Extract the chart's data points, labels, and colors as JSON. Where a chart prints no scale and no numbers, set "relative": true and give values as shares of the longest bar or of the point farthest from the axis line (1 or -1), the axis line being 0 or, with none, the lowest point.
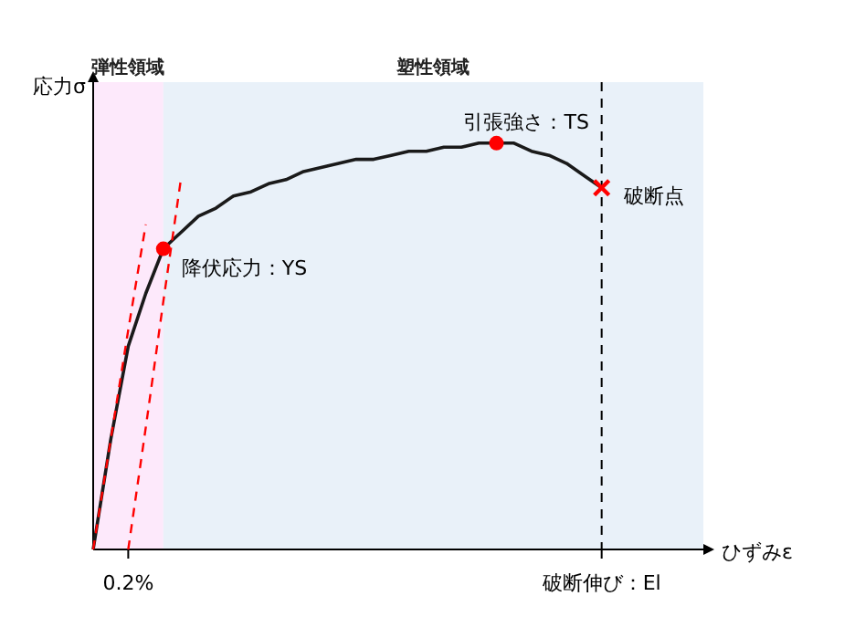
{
  "chart_data": {
    "type": "line",
    "relative": true,
    "xlabel": "ひずみε",
    "ylabel": "応力σ",
    "categories": [
      null,
      null,
      "0.2%",
      null,
      null,
      null,
      null,
      null,
      null,
      null,
      null,
      null,
      null,
      null,
      null,
      null,
      null,
      null,
      null,
      null,
      null,
      null,
      null,
      null,
      null,
      null,
      null,
      null,
      null,
      "破断伸び：El"
    ],
    "series": [
      {
        "color": "#1a1a1a",
        "values": [
          0,
          0.27,
          0.5,
          0.63,
          0.74,
          0.78,
          0.82,
          0.84,
          0.87,
          0.88,
          0.9,
          0.91,
          0.93,
          0.94,
          0.95,
          0.96,
          0.96,
          0.97,
          0.98,
          0.98,
          0.99,
          0.99,
          1.0,
          1.0,
          1.0,
          0.98,
          0.97,
          0.95,
          0.92,
          0.89
        ]
      },
      {
        "color": "#ff0000",
        "line_style": "dashed",
        "values": [
          0,
          0.27,
          0.54,
          0.8,
          null,
          null,
          null,
          null,
          null,
          null,
          null,
          null,
          null,
          null,
          null,
          null,
          null,
          null,
          null,
          null,
          null,
          null,
          null,
          null,
          null,
          null,
          null,
          null,
          null,
          null
        ]
      },
      {
        "color": "#ff0000",
        "line_style": "dashed",
        "values": [
          null,
          null,
          0,
          0.3,
          0.61,
          0.91,
          null,
          null,
          null,
          null,
          null,
          null,
          null,
          null,
          null,
          null,
          null,
          null,
          null,
          null,
          null,
          null,
          null,
          null,
          null,
          null,
          null,
          null,
          null,
          null
        ]
      },
      {
        "type": "scatter",
        "color": "#ff0000",
        "marker": "circle",
        "values": [
          null,
          null,
          null,
          null,
          0.74,
          null,
          null,
          null,
          null,
          null,
          null,
          null,
          null,
          null,
          null,
          null,
          null,
          null,
          null,
          null,
          null,
          null,
          null,
          1.0,
          null,
          null,
          null,
          null,
          null,
          null
        ]
      },
      {
        "type": "scatter",
        "color": "#ff0000",
        "marker": "cross",
        "values": [
          null,
          null,
          null,
          null,
          null,
          null,
          null,
          null,
          null,
          null,
          null,
          null,
          null,
          null,
          null,
          null,
          null,
          null,
          null,
          null,
          null,
          null,
          null,
          null,
          null,
          null,
          null,
          null,
          null,
          0.89
        ]
      }
    ],
    "annotations": [
      "降伏応力：YS",
      "引張強さ：TS",
      "破断点",
      "弾性領域",
      "塑性領域"
    ],
    "ref_lines": [
      {
        "axis": "x",
        "value": "破断伸び：El",
        "line_style": "dashed",
        "color": "#000000"
      }
    ]
  }
}
